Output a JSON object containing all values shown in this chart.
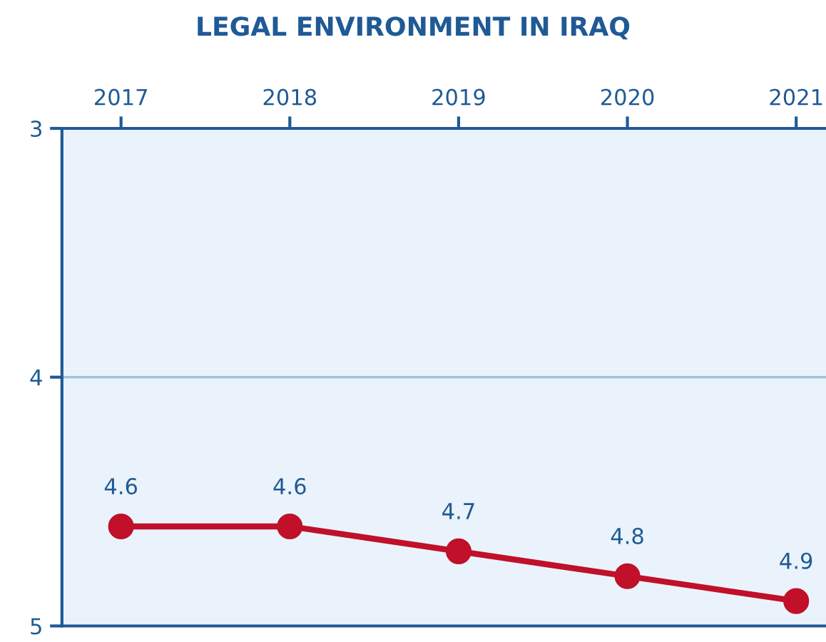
{
  "chart_data": {
    "type": "line",
    "title": "LEGAL ENVIRONMENT IN IRAQ",
    "categories": [
      "2017",
      "2018",
      "2019",
      "2020",
      "2021"
    ],
    "series": [
      {
        "color": "#c0102a",
        "values": [
          4.6,
          4.6,
          4.7,
          4.8,
          4.9
        ]
      }
    ],
    "ylim": [
      5,
      3
    ],
    "yticks": [
      3,
      4,
      5
    ],
    "ref_lines": [
      {
        "axis": "y",
        "value": 4,
        "color": "#9fc3e0"
      }
    ],
    "marker": "circle",
    "line_style": "solid",
    "data_labels": true
  }
}
